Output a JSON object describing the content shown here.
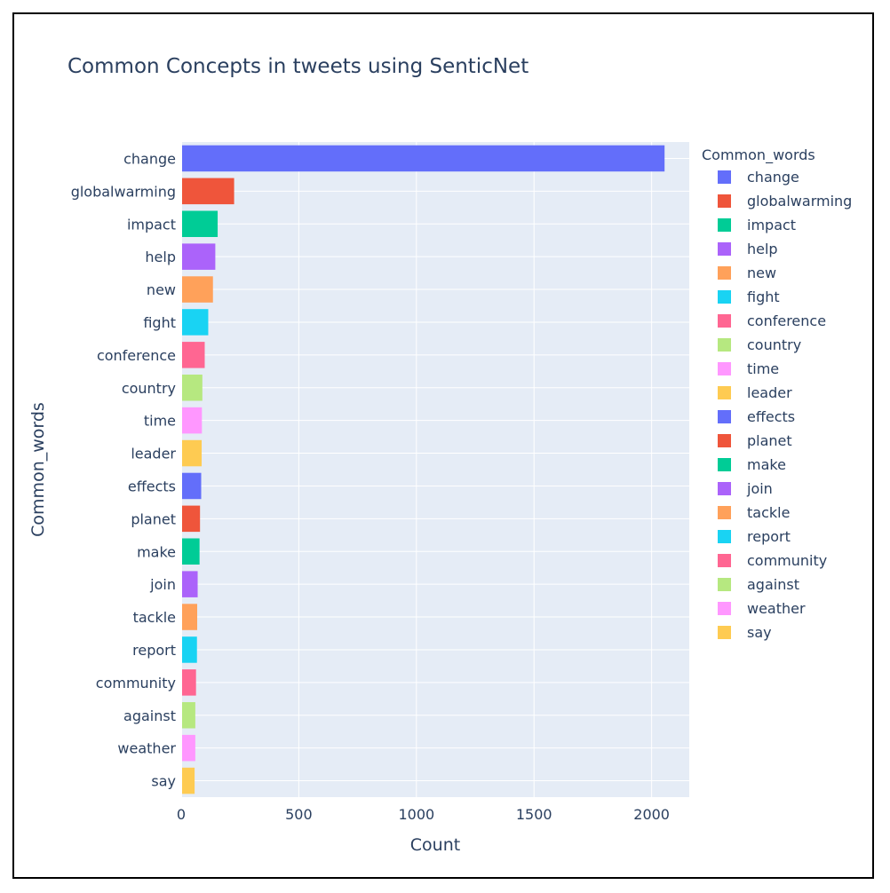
{
  "title": "Common Concepts in tweets using SenticNet",
  "chart_data": {
    "type": "bar",
    "orientation": "horizontal",
    "title": "Common Concepts in tweets using SenticNet",
    "xlabel": "Count",
    "ylabel": "Common_words",
    "legend_title": "Common_words",
    "legend_position": "right",
    "grid": true,
    "xlim": [
      0,
      2160
    ],
    "xticks": [
      0,
      500,
      1000,
      1500,
      2000
    ],
    "categories": [
      "change",
      "globalwarming",
      "impact",
      "help",
      "new",
      "fight",
      "conference",
      "country",
      "time",
      "leader",
      "effects",
      "planet",
      "make",
      "join",
      "tackle",
      "report",
      "community",
      "against",
      "weather",
      "say"
    ],
    "values": [
      2055,
      225,
      155,
      145,
      135,
      115,
      100,
      90,
      88,
      87,
      85,
      80,
      78,
      70,
      68,
      67,
      63,
      60,
      60,
      57
    ],
    "colors": [
      "#636EFA",
      "#EF553B",
      "#00CC96",
      "#AB63FA",
      "#FFA15A",
      "#19D3F3",
      "#FF6692",
      "#B6E880",
      "#FF97FF",
      "#FECB52",
      "#636EFA",
      "#EF553B",
      "#00CC96",
      "#AB63FA",
      "#FFA15A",
      "#19D3F3",
      "#FF6692",
      "#B6E880",
      "#FF97FF",
      "#FECB52"
    ],
    "plot_bg": "#E5ECF6",
    "grid_color": "#ffffff"
  }
}
